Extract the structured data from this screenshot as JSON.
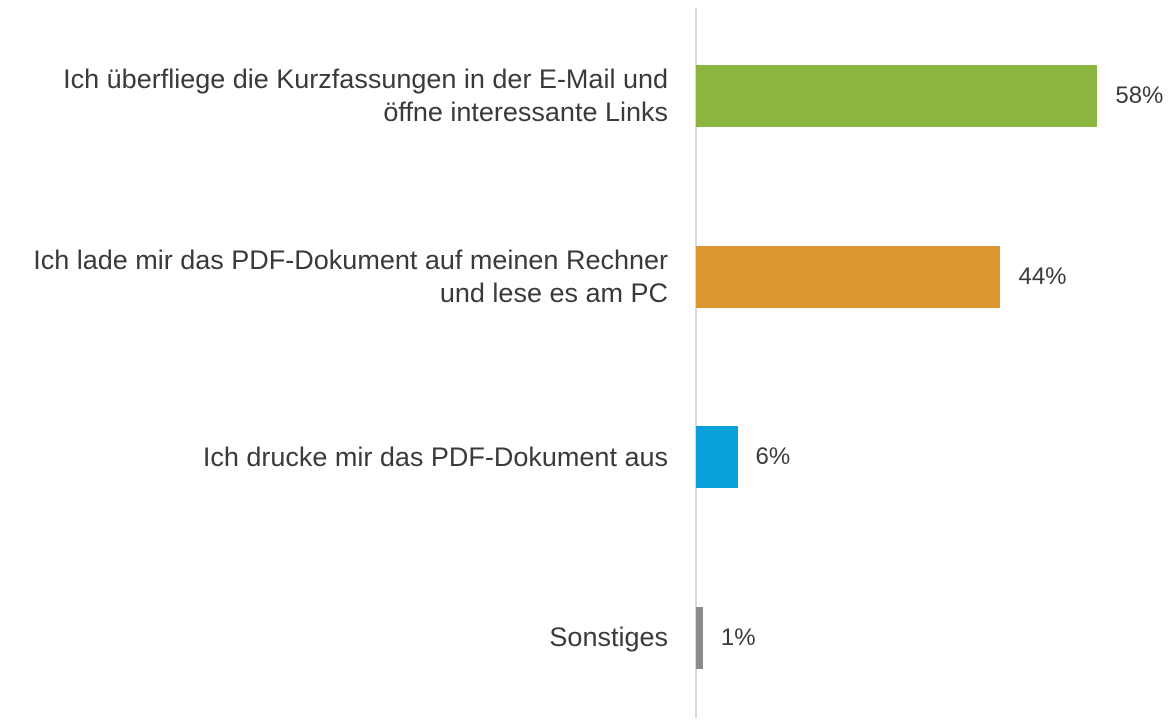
{
  "chart_data": {
    "type": "bar",
    "orientation": "horizontal",
    "categories": [
      "Ich überfliege die Kurzfassungen in der E-Mail und öffne interessante Links",
      "Ich lade mir das PDF-Dokument auf meinen Rechner und lese es am PC",
      "Ich drucke mir das PDF-Dokument aus",
      "Sonstiges"
    ],
    "values": [
      58,
      44,
      6,
      1
    ],
    "value_labels": [
      "58%",
      "44%",
      "6%",
      "1%"
    ],
    "colors": [
      "#8ab53e",
      "#dd9732",
      "#0aa0dc",
      "#8c8c8c"
    ]
  }
}
